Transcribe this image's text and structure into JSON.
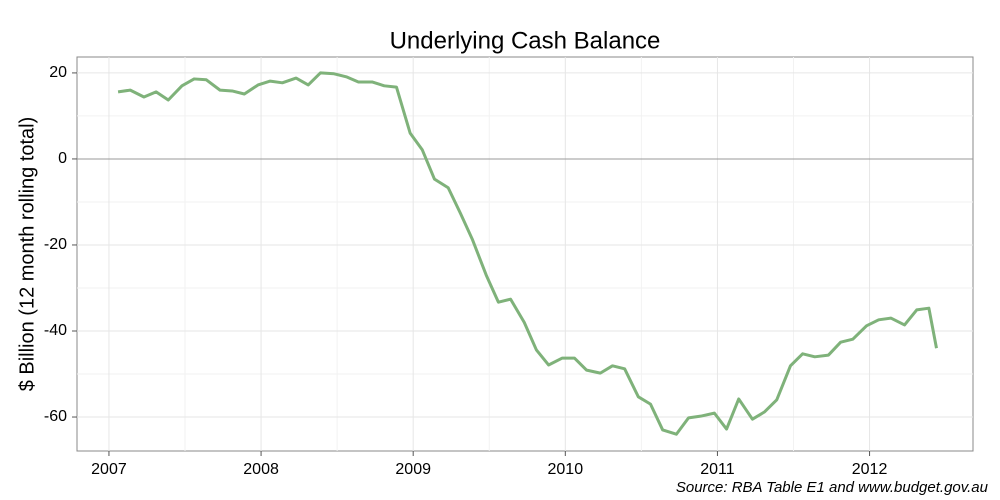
{
  "chart_data": {
    "type": "line",
    "title": "Underlying Cash Balance",
    "y_label": "$ Billion (12 month rolling total)",
    "source": "Source: RBA Table E1 and www.budget.gov.au",
    "x": [
      2007.06,
      2007.14,
      2007.23,
      2007.31,
      2007.39,
      2007.48,
      2007.56,
      2007.64,
      2007.73,
      2007.81,
      2007.89,
      2007.98,
      2008.06,
      2008.14,
      2008.23,
      2008.31,
      2008.39,
      2008.48,
      2008.56,
      2008.64,
      2008.73,
      2008.81,
      2008.89,
      2008.98,
      2009.06,
      2009.14,
      2009.23,
      2009.31,
      2009.39,
      2009.48,
      2009.56,
      2009.64,
      2009.73,
      2009.81,
      2009.89,
      2009.98,
      2010.06,
      2010.14,
      2010.23,
      2010.31,
      2010.39,
      2010.48,
      2010.56,
      2010.64,
      2010.73,
      2010.81,
      2010.89,
      2010.98,
      2011.06,
      2011.14,
      2011.23,
      2011.31,
      2011.39,
      2011.48,
      2011.56,
      2011.64,
      2011.73,
      2011.81,
      2011.89,
      2011.98,
      2012.06,
      2012.14,
      2012.23,
      2012.31,
      2012.39,
      2012.44
    ],
    "series": [
      {
        "name": "Underlying Cash Balance",
        "color": "#7fb27a",
        "values": [
          15.6,
          16.0,
          14.4,
          15.6,
          13.7,
          17.0,
          18.6,
          18.4,
          16.0,
          15.8,
          15.1,
          17.2,
          18.1,
          17.7,
          18.8,
          17.2,
          20.0,
          19.8,
          19.1,
          17.9,
          17.9,
          17.0,
          16.7,
          6.0,
          2.1,
          -4.7,
          -6.7,
          -12.6,
          -18.8,
          -27.0,
          -33.3,
          -32.6,
          -38.0,
          -44.4,
          -47.9,
          -46.3,
          -46.3,
          -49.1,
          -49.8,
          -48.1,
          -48.8,
          -55.3,
          -57.0,
          -63.0,
          -64.0,
          -60.2,
          -59.8,
          -59.1,
          -62.8,
          -55.8,
          -60.5,
          -58.8,
          -56.0,
          -48.1,
          -45.3,
          -46.0,
          -45.6,
          -42.6,
          -41.9,
          -38.8,
          -37.4,
          -37.0,
          -38.6,
          -35.1,
          -34.7,
          -44.0
        ]
      }
    ],
    "xlim": [
      2006.79,
      2012.68
    ],
    "ylim": [
      -67.9,
      23.7
    ],
    "xticks": [
      2007,
      2008,
      2009,
      2010,
      2011,
      2012
    ],
    "yticks": [
      -60,
      -40,
      -20,
      0,
      20
    ],
    "hline": 0,
    "grid": true
  }
}
